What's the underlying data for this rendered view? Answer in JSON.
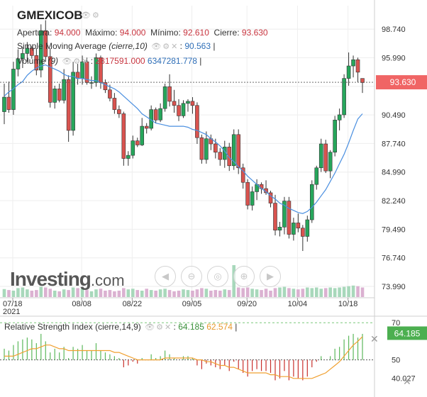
{
  "header": {
    "symbol": "GMEXICOB",
    "ohlc": {
      "open_label": "Apertura:",
      "open": "94.000",
      "high_label": "Máximo:",
      "high": "94.000",
      "low_label": "Mínimo:",
      "low": "92.610",
      "close_label": "Cierre:",
      "close": "93.630"
    },
    "sma": {
      "name": "Simple Moving Average",
      "params": "(cierre,10)",
      "value": "90.563"
    },
    "volume": {
      "name": "Volume",
      "params": "(9)",
      "value1": "2817591.000",
      "value2": "6347281.778"
    }
  },
  "rsi": {
    "name": "Relative Strength Index",
    "params": "(cierre,14,9)",
    "value1": "64.185",
    "value2": "62.574"
  },
  "branding": {
    "logo_main": "Investing",
    "logo_suffix": ".com"
  },
  "colors": {
    "up": "#26a65b",
    "down": "#d9534f",
    "sma": "#4a8fe0",
    "rsi_signal": "#f0a030",
    "price_tag": "#f06565",
    "rsi_tag": "#4caf50"
  },
  "chart_data": {
    "type": "candlestick",
    "y_axis": {
      "ticks": [
        "98.740",
        "95.990",
        "93.240",
        "90.490",
        "87.740",
        "84.990",
        "82.240",
        "79.490",
        "76.740",
        "73.990"
      ],
      "range": [
        72.9,
        101.0
      ]
    },
    "x_axis": {
      "ticks": [
        "07/18",
        "08/08",
        "08/22",
        "09/05",
        "09/20",
        "10/04",
        "10/18"
      ],
      "year_label": "2021"
    },
    "last_price": "93.630",
    "candles": [
      {
        "o": 90.8,
        "h": 93.5,
        "l": 89.6,
        "c": 92.2
      },
      {
        "o": 92.2,
        "h": 93.7,
        "l": 90.7,
        "c": 91.0
      },
      {
        "o": 91.0,
        "h": 95.6,
        "l": 90.5,
        "c": 94.9
      },
      {
        "o": 94.9,
        "h": 96.8,
        "l": 94.2,
        "c": 95.9
      },
      {
        "o": 95.9,
        "h": 97.0,
        "l": 95.0,
        "c": 96.4
      },
      {
        "o": 96.4,
        "h": 97.5,
        "l": 95.6,
        "c": 96.9
      },
      {
        "o": 96.9,
        "h": 97.1,
        "l": 95.9,
        "c": 96.2
      },
      {
        "o": 96.2,
        "h": 96.9,
        "l": 94.3,
        "c": 94.8
      },
      {
        "o": 94.8,
        "h": 99.2,
        "l": 94.1,
        "c": 98.6
      },
      {
        "o": 98.6,
        "h": 99.6,
        "l": 95.6,
        "c": 96.1
      },
      {
        "o": 96.1,
        "h": 96.9,
        "l": 91.2,
        "c": 91.7
      },
      {
        "o": 91.7,
        "h": 93.3,
        "l": 91.1,
        "c": 93.0
      },
      {
        "o": 93.0,
        "h": 93.5,
        "l": 91.7,
        "c": 91.9
      },
      {
        "o": 91.9,
        "h": 94.9,
        "l": 91.6,
        "c": 93.9
      },
      {
        "o": 93.9,
        "h": 94.3,
        "l": 87.9,
        "c": 89.0
      },
      {
        "o": 89.0,
        "h": 95.6,
        "l": 88.5,
        "c": 94.6
      },
      {
        "o": 94.6,
        "h": 95.4,
        "l": 93.4,
        "c": 94.0
      },
      {
        "o": 94.0,
        "h": 96.2,
        "l": 93.4,
        "c": 95.6
      },
      {
        "o": 95.6,
        "h": 96.0,
        "l": 93.4,
        "c": 93.6
      },
      {
        "o": 93.6,
        "h": 94.2,
        "l": 93.0,
        "c": 93.6
      },
      {
        "o": 93.6,
        "h": 96.4,
        "l": 93.2,
        "c": 96.0
      },
      {
        "o": 96.0,
        "h": 96.2,
        "l": 93.0,
        "c": 93.6
      },
      {
        "o": 93.6,
        "h": 93.9,
        "l": 92.6,
        "c": 92.9
      },
      {
        "o": 92.9,
        "h": 93.4,
        "l": 91.8,
        "c": 92.1
      },
      {
        "o": 92.1,
        "h": 92.6,
        "l": 90.6,
        "c": 91.0
      },
      {
        "o": 91.0,
        "h": 91.4,
        "l": 90.2,
        "c": 90.6
      },
      {
        "o": 90.6,
        "h": 90.8,
        "l": 85.6,
        "c": 86.3
      },
      {
        "o": 86.3,
        "h": 87.0,
        "l": 85.6,
        "c": 86.6
      },
      {
        "o": 86.6,
        "h": 88.5,
        "l": 86.3,
        "c": 88.0
      },
      {
        "o": 88.0,
        "h": 88.3,
        "l": 87.4,
        "c": 87.6
      },
      {
        "o": 87.6,
        "h": 90.2,
        "l": 87.5,
        "c": 89.4
      },
      {
        "o": 89.4,
        "h": 89.7,
        "l": 88.7,
        "c": 89.2
      },
      {
        "o": 89.2,
        "h": 91.4,
        "l": 89.0,
        "c": 91.0
      },
      {
        "o": 91.0,
        "h": 91.2,
        "l": 89.7,
        "c": 90.0
      },
      {
        "o": 90.0,
        "h": 91.6,
        "l": 89.8,
        "c": 91.1
      },
      {
        "o": 91.1,
        "h": 93.5,
        "l": 90.8,
        "c": 93.2
      },
      {
        "o": 93.2,
        "h": 94.4,
        "l": 91.3,
        "c": 91.8
      },
      {
        "o": 91.8,
        "h": 92.9,
        "l": 90.7,
        "c": 91.4
      },
      {
        "o": 91.4,
        "h": 92.0,
        "l": 89.9,
        "c": 90.4
      },
      {
        "o": 90.4,
        "h": 91.9,
        "l": 90.2,
        "c": 91.6
      },
      {
        "o": 91.6,
        "h": 92.0,
        "l": 90.8,
        "c": 91.8
      },
      {
        "o": 91.8,
        "h": 92.2,
        "l": 90.6,
        "c": 91.4
      },
      {
        "o": 91.4,
        "h": 91.7,
        "l": 87.7,
        "c": 88.3
      },
      {
        "o": 88.3,
        "h": 88.6,
        "l": 85.8,
        "c": 86.2
      },
      {
        "o": 86.2,
        "h": 88.9,
        "l": 85.8,
        "c": 88.2
      },
      {
        "o": 88.2,
        "h": 88.6,
        "l": 87.1,
        "c": 87.7
      },
      {
        "o": 87.7,
        "h": 88.2,
        "l": 86.3,
        "c": 86.9
      },
      {
        "o": 86.9,
        "h": 87.3,
        "l": 85.6,
        "c": 86.2
      },
      {
        "o": 86.2,
        "h": 88.0,
        "l": 85.4,
        "c": 87.4
      },
      {
        "o": 87.4,
        "h": 87.8,
        "l": 85.1,
        "c": 85.6
      },
      {
        "o": 85.6,
        "h": 89.1,
        "l": 85.2,
        "c": 88.6
      },
      {
        "o": 88.6,
        "h": 89.1,
        "l": 84.8,
        "c": 85.4
      },
      {
        "o": 85.4,
        "h": 85.8,
        "l": 83.4,
        "c": 84.0
      },
      {
        "o": 84.0,
        "h": 84.3,
        "l": 81.4,
        "c": 81.8
      },
      {
        "o": 81.8,
        "h": 83.6,
        "l": 81.3,
        "c": 83.1
      },
      {
        "o": 83.1,
        "h": 84.3,
        "l": 82.3,
        "c": 83.8
      },
      {
        "o": 83.8,
        "h": 84.0,
        "l": 82.9,
        "c": 83.4
      },
      {
        "o": 83.4,
        "h": 84.2,
        "l": 82.8,
        "c": 83.0
      },
      {
        "o": 83.0,
        "h": 83.2,
        "l": 81.6,
        "c": 82.0
      },
      {
        "o": 82.0,
        "h": 82.8,
        "l": 78.9,
        "c": 79.4
      },
      {
        "o": 79.4,
        "h": 80.2,
        "l": 78.8,
        "c": 79.7
      },
      {
        "o": 79.7,
        "h": 82.6,
        "l": 79.0,
        "c": 82.2
      },
      {
        "o": 82.2,
        "h": 82.6,
        "l": 78.6,
        "c": 79.0
      },
      {
        "o": 79.0,
        "h": 80.6,
        "l": 78.4,
        "c": 80.1
      },
      {
        "o": 80.1,
        "h": 81.0,
        "l": 79.2,
        "c": 79.6
      },
      {
        "o": 79.6,
        "h": 79.9,
        "l": 77.4,
        "c": 78.8
      },
      {
        "o": 78.8,
        "h": 80.8,
        "l": 78.3,
        "c": 80.4
      },
      {
        "o": 80.4,
        "h": 84.2,
        "l": 80.1,
        "c": 83.8
      },
      {
        "o": 83.8,
        "h": 85.6,
        "l": 83.3,
        "c": 85.4
      },
      {
        "o": 85.4,
        "h": 88.2,
        "l": 85.0,
        "c": 87.7
      },
      {
        "o": 87.7,
        "h": 88.1,
        "l": 84.9,
        "c": 85.1
      },
      {
        "o": 85.1,
        "h": 87.1,
        "l": 84.4,
        "c": 86.9
      },
      {
        "o": 86.9,
        "h": 90.4,
        "l": 86.5,
        "c": 90.0
      },
      {
        "o": 90.0,
        "h": 91.1,
        "l": 89.0,
        "c": 90.5
      },
      {
        "o": 90.5,
        "h": 94.4,
        "l": 90.2,
        "c": 94.0
      },
      {
        "o": 94.0,
        "h": 96.5,
        "l": 93.3,
        "c": 95.2
      },
      {
        "o": 95.2,
        "h": 96.2,
        "l": 94.1,
        "c": 95.8
      },
      {
        "o": 95.8,
        "h": 96.0,
        "l": 93.6,
        "c": 94.6
      },
      {
        "o": 94.0,
        "h": 94.0,
        "l": 92.6,
        "c": 93.6
      }
    ],
    "sma": [
      92.3,
      92.7,
      93.0,
      93.4,
      93.7,
      94.3,
      94.7,
      95.0,
      95.2,
      95.3,
      95.1,
      94.9,
      94.7,
      94.4,
      94.2,
      94.2,
      94.0,
      94.0,
      93.9,
      93.8,
      93.8,
      93.6,
      93.4,
      93.2,
      93.0,
      92.7,
      92.3,
      91.9,
      91.5,
      91.1,
      90.6,
      90.3,
      90.0,
      89.7,
      89.6,
      89.5,
      89.4,
      89.4,
      89.4,
      89.4,
      89.3,
      89.1,
      89.0,
      88.8,
      88.6,
      88.2,
      87.9,
      87.5,
      87.0,
      86.4,
      86.0,
      85.5,
      85.1,
      84.6,
      84.2,
      83.8,
      83.4,
      83.1,
      82.7,
      82.4,
      82.0,
      81.8,
      81.5,
      81.3,
      81.1,
      81.0,
      81.2,
      81.6,
      82.1,
      82.7,
      83.3,
      84.1,
      84.9,
      85.8,
      86.7,
      87.8,
      89.0,
      90.1,
      90.6
    ],
    "volume": [
      0.25,
      0.22,
      0.2,
      0.28,
      0.3,
      0.24,
      0.2,
      0.22,
      0.32,
      0.3,
      0.26,
      0.2,
      0.18,
      0.24,
      0.22,
      0.3,
      0.28,
      0.26,
      0.22,
      0.18,
      0.24,
      0.26,
      0.2,
      0.22,
      0.18,
      0.2,
      0.28,
      0.24,
      0.26,
      0.22,
      0.2,
      0.26,
      0.22,
      0.2,
      0.24,
      0.26,
      0.22,
      0.18,
      0.2,
      0.24,
      0.22,
      0.2,
      0.24,
      0.28,
      0.26,
      0.2,
      0.22,
      0.2,
      0.24,
      0.22,
      0.35,
      0.3,
      0.28,
      0.3,
      0.26,
      0.24,
      0.22,
      0.26,
      0.2,
      0.28,
      0.3,
      0.32,
      0.28,
      0.26,
      0.24,
      0.26,
      0.3,
      0.28,
      0.3,
      0.26,
      0.28,
      0.3,
      0.28,
      0.3,
      0.32,
      0.34,
      0.36,
      0.34,
      0.3
    ],
    "rsi": {
      "y_axis": {
        "ticks": [
          "70",
          "50",
          "40.027"
        ],
        "range": [
          30,
          72
        ]
      },
      "value": "64.185",
      "rsi_line": [
        56,
        55,
        58,
        60,
        61,
        62,
        61,
        59,
        64,
        60,
        54,
        56,
        54,
        57,
        51,
        57,
        56,
        58,
        55,
        55,
        59,
        55,
        54,
        53,
        52,
        51,
        46,
        47,
        49,
        48,
        51,
        50,
        53,
        51,
        52,
        55,
        53,
        51,
        50,
        52,
        52,
        51,
        47,
        45,
        48,
        47,
        46,
        45,
        47,
        44,
        49,
        45,
        43,
        41,
        44,
        45,
        44,
        44,
        43,
        39,
        40,
        44,
        39,
        41,
        40,
        39,
        41,
        46,
        49,
        52,
        50,
        52,
        56,
        57,
        61,
        63,
        64,
        62,
        64
      ],
      "signal_line": [
        52,
        52,
        52,
        53,
        54,
        55,
        56,
        56,
        57,
        58,
        58,
        57,
        56,
        56,
        55,
        55,
        55,
        55,
        55,
        55,
        55,
        55,
        55,
        55,
        54,
        54,
        53,
        52,
        51,
        50,
        50,
        50,
        50,
        50,
        50,
        51,
        51,
        51,
        51,
        51,
        51,
        51,
        50,
        50,
        49,
        49,
        48,
        47,
        47,
        46,
        46,
        45,
        44,
        43,
        43,
        43,
        43,
        43,
        42,
        42,
        41,
        41,
        41,
        40,
        40,
        40,
        40,
        40,
        41,
        42,
        43,
        45,
        47,
        49,
        52,
        55,
        58,
        60,
        62.5
      ]
    }
  }
}
